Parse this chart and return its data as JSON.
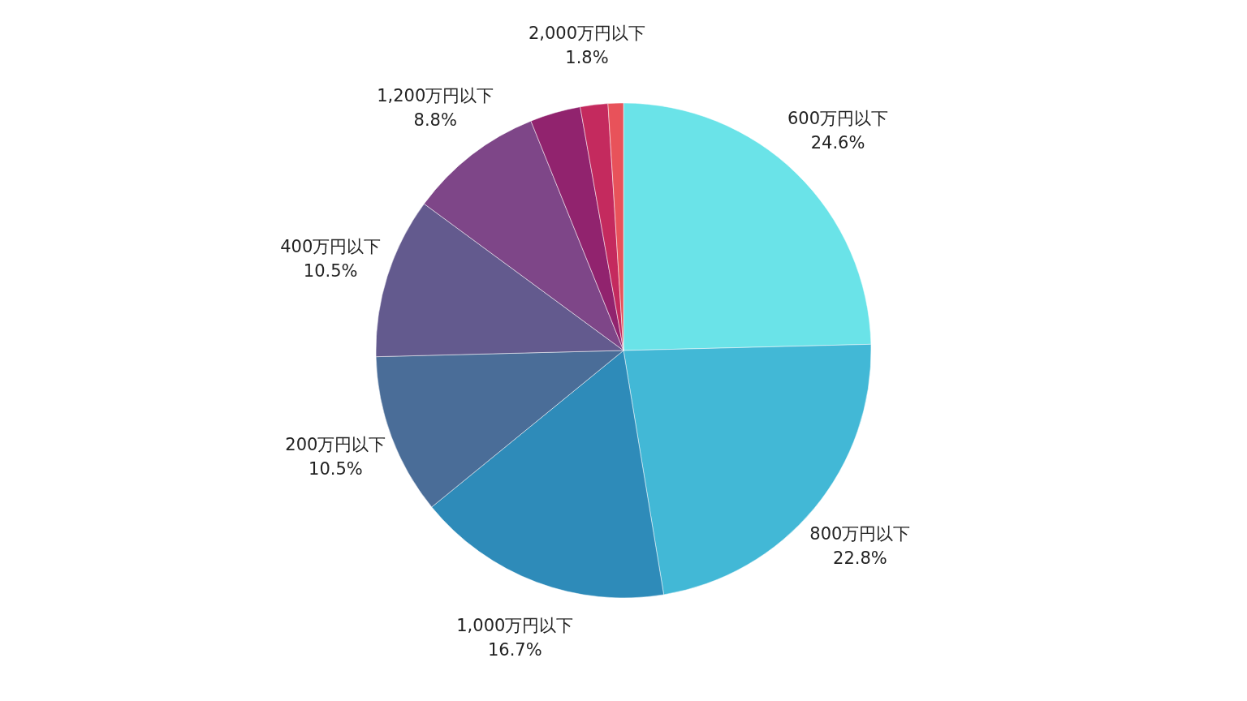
{
  "chart_data": {
    "type": "pie",
    "categories": [
      "600万円以下",
      "800万円以下",
      "1,000万円以下",
      "200万円以下",
      "400万円以下",
      "1,200万円以下",
      null,
      "2,000万円以下",
      null
    ],
    "values": [
      24.6,
      22.8,
      16.7,
      10.5,
      10.5,
      8.8,
      3.3,
      1.8,
      1.0
    ],
    "value_labels": [
      "24.6%",
      "22.8%",
      "16.7%",
      "10.5%",
      "10.5%",
      "8.8%",
      null,
      "1.8%",
      null
    ],
    "colors": [
      "#6ae3e8",
      "#42b8d6",
      "#2e8bb9",
      "#4a6d98",
      "#635a8e",
      "#7e4688",
      "#91236e",
      "#c42a5e",
      "#e8525a"
    ]
  }
}
